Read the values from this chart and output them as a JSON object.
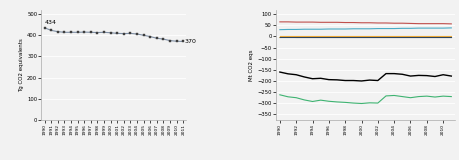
{
  "years": [
    1990,
    1991,
    1992,
    1993,
    1994,
    1995,
    1996,
    1997,
    1998,
    1999,
    2000,
    2001,
    2002,
    2003,
    2004,
    2005,
    2006,
    2007,
    2008,
    2009,
    2010,
    2011
  ],
  "agriculture": [
    434,
    422,
    416,
    413,
    413,
    413,
    414,
    413,
    412,
    413,
    411,
    408,
    407,
    408,
    405,
    399,
    393,
    385,
    381,
    374,
    371,
    370
  ],
  "left_ylabel": "Tg CO2 equivalents",
  "left_yticks": [
    0,
    100,
    200,
    300,
    400,
    500
  ],
  "left_ylim": [
    0,
    520
  ],
  "left_annotation_start": "434",
  "left_annotation_end": "370",
  "right_ylabel": "Mt CO2 eqs",
  "right_yticks": [
    -350,
    -300,
    -250,
    -200,
    -150,
    -100,
    -50,
    0,
    50,
    100
  ],
  "right_ylim": [
    -375,
    120
  ],
  "forest_land": [
    -262,
    -271,
    -275,
    -285,
    -292,
    -286,
    -291,
    -294,
    -296,
    -299,
    -301,
    -298,
    -299,
    -267,
    -265,
    -270,
    -275,
    -270,
    -268,
    -272,
    -268,
    -270
  ],
  "cropland": [
    65,
    65,
    64,
    64,
    64,
    63,
    63,
    63,
    62,
    62,
    61,
    61,
    60,
    60,
    59,
    59,
    58,
    57,
    57,
    57,
    57,
    56
  ],
  "grassland": [
    -5,
    -4,
    -5,
    -5,
    -5,
    -5,
    -5,
    -5,
    -5,
    -5,
    -5,
    -5,
    -5,
    -5,
    -5,
    -5,
    -5,
    -5,
    -5,
    -5,
    -5,
    -5
  ],
  "wetlands": [
    -2,
    -2,
    -2,
    -2,
    -2,
    -2,
    -2,
    -2,
    -2,
    -2,
    -2,
    -2,
    -2,
    -2,
    -2,
    -2,
    -2,
    -2,
    -2,
    -2,
    -2,
    -2
  ],
  "settlements": [
    30,
    31,
    31,
    32,
    32,
    32,
    33,
    33,
    33,
    34,
    34,
    34,
    35,
    35,
    35,
    36,
    36,
    37,
    37,
    37,
    37,
    38
  ],
  "other_land": [
    2,
    2,
    2,
    2,
    2,
    2,
    2,
    2,
    2,
    2,
    2,
    2,
    2,
    2,
    2,
    2,
    2,
    2,
    2,
    2,
    2,
    2
  ],
  "total_lulucf": [
    -160,
    -168,
    -172,
    -182,
    -190,
    -188,
    -194,
    -195,
    -198,
    -198,
    -200,
    -196,
    -198,
    -167,
    -167,
    -170,
    -178,
    -175,
    -176,
    -180,
    -172,
    -178
  ],
  "forest_color": "#3eb371",
  "cropland_color": "#c0504d",
  "grassland_color": "#9c8535",
  "wetlands_color": "#243f60",
  "settlements_color": "#4bacc6",
  "other_land_color": "#e8a838",
  "total_lulucf_color": "#000000",
  "agri_line_color": "#7f8fa4",
  "agri_marker_color": "#3d3d3d",
  "bg_color": "#f2f2f2",
  "grid_color": "#ffffff"
}
